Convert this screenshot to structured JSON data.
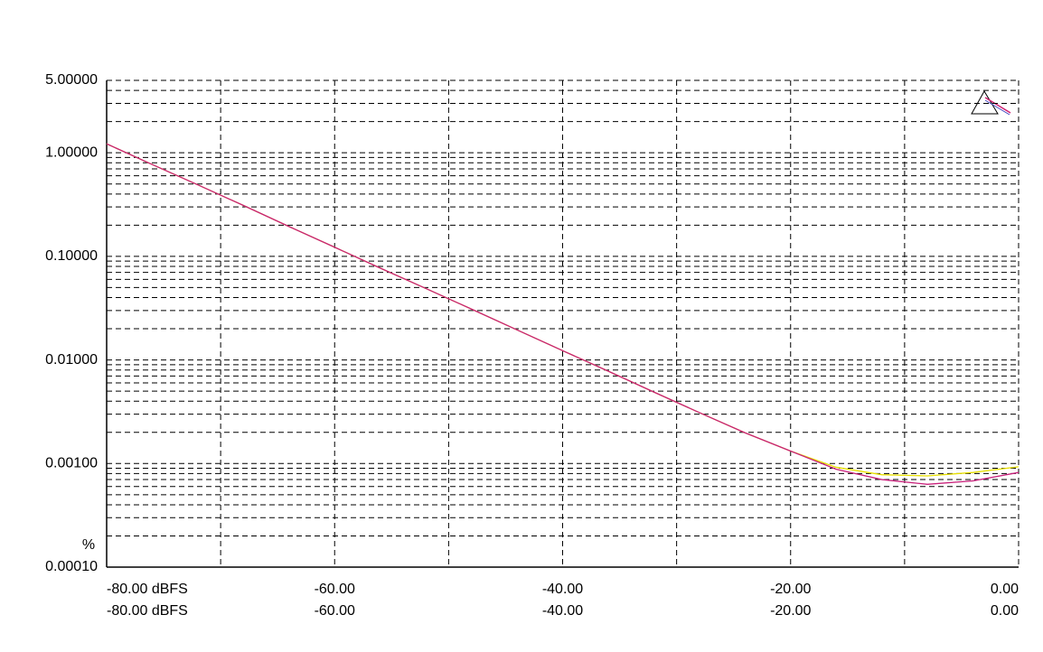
{
  "chart_data": {
    "type": "line",
    "y_unit": "%",
    "log_y": true,
    "grid": true,
    "xlim": [
      -80,
      0
    ],
    "ylim": [
      0.0001,
      5
    ],
    "xticks": [
      {
        "value": -80,
        "label": "-80.00 dBFS"
      },
      {
        "value": -60,
        "label": "-60.00"
      },
      {
        "value": -40,
        "label": "-40.00"
      },
      {
        "value": -20,
        "label": "-20.00"
      },
      {
        "value": 0,
        "label": "0.00"
      }
    ],
    "x2ticks": [
      {
        "value": -80,
        "label": "-80.00 dBFS"
      },
      {
        "value": -60,
        "label": "-60.00"
      },
      {
        "value": -40,
        "label": "-40.00"
      },
      {
        "value": -20,
        "label": "-20.00"
      },
      {
        "value": 0,
        "label": "0.00"
      }
    ],
    "xgrid": [
      -70,
      -50,
      -30,
      -10
    ],
    "yticks": [
      {
        "value": 5,
        "label": "5.00000"
      },
      {
        "value": 1,
        "label": "1.00000"
      },
      {
        "value": 0.1,
        "label": "0.10000"
      },
      {
        "value": 0.01,
        "label": "0.01000"
      },
      {
        "value": 0.001,
        "label": "0.00100"
      },
      {
        "value": 0.0001,
        "label": "0.00010"
      }
    ],
    "yminorticks": [
      0.0002,
      0.0003,
      0.0004,
      0.0005,
      0.0006,
      0.0007,
      0.0008,
      0.0009,
      0.002,
      0.003,
      0.004,
      0.005,
      0.006,
      0.007,
      0.008,
      0.009,
      0.02,
      0.03,
      0.04,
      0.05,
      0.06,
      0.07,
      0.08,
      0.09,
      0.2,
      0.3,
      0.4,
      0.5,
      0.6,
      0.7,
      0.8,
      0.9,
      2,
      3,
      4
    ],
    "x": [
      -80,
      -76,
      -72,
      -68,
      -64,
      -60,
      -56,
      -52,
      -48,
      -44,
      -40,
      -36,
      -32,
      -28,
      -24,
      -20,
      -16,
      -12,
      -8,
      -4,
      0
    ],
    "series": [
      {
        "color": "#e8e000",
        "values": [
          1.22,
          0.77,
          0.49,
          0.31,
          0.194,
          0.1225,
          0.077,
          0.049,
          0.031,
          0.0195,
          0.0123,
          0.0078,
          0.0049,
          0.0031,
          0.00198,
          0.00132,
          0.00092,
          0.00078,
          0.00076,
          0.00082,
          0.00093
        ]
      },
      {
        "color": "#c8207a",
        "values": [
          1.22,
          0.77,
          0.49,
          0.31,
          0.194,
          0.1225,
          0.077,
          0.049,
          0.031,
          0.0195,
          0.0123,
          0.0078,
          0.0049,
          0.0031,
          0.00198,
          0.00132,
          0.00088,
          0.0007,
          0.00063,
          0.00068,
          0.00082
        ]
      }
    ]
  }
}
